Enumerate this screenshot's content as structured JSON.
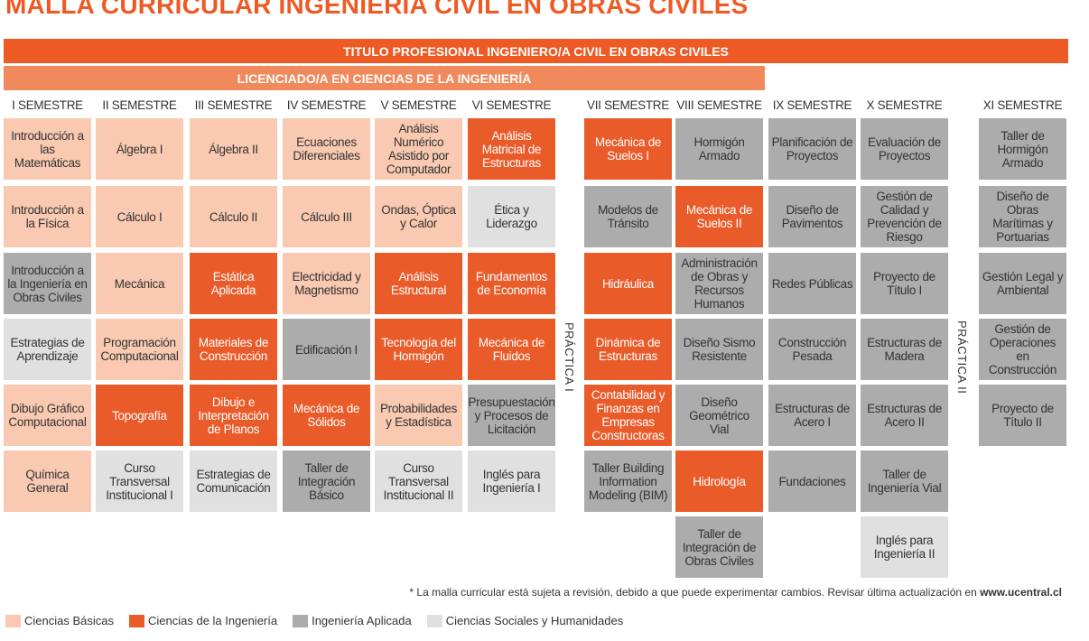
{
  "title": "MALLA CURRICULAR INGENIERÍA CIVIL EN OBRAS CIVILES",
  "titulo_bar": "TITULO PROFESIONAL INGENIERO/A CIVIL EN OBRAS CIVILES",
  "licenciado_bar": "LICENCIADO/A EN CIENCIAS DE LA INGENIERÍA",
  "semesters": [
    {
      "label": "I SEMESTRE",
      "courses": [
        {
          "name": "Introducción a las Matemáticas",
          "cat": "cb"
        },
        {
          "name": "Introducción a la Física",
          "cat": "cb"
        },
        {
          "name": "Introducción a la Ingeniería en Obras Civiles",
          "cat": "ia"
        },
        {
          "name": "Estrategias de Aprendizaje",
          "cat": "cs"
        },
        {
          "name": "Dibujo Gráfico Computacional",
          "cat": "cb"
        },
        {
          "name": "Química General",
          "cat": "cb"
        }
      ]
    },
    {
      "label": "II SEMESTRE",
      "courses": [
        {
          "name": "Álgebra I",
          "cat": "cb"
        },
        {
          "name": "Cálculo I",
          "cat": "cb"
        },
        {
          "name": "Mecánica",
          "cat": "cb"
        },
        {
          "name": "Programación Computacional",
          "cat": "cb"
        },
        {
          "name": "Topografía",
          "cat": "ci"
        },
        {
          "name": "Curso Transversal Institucional I",
          "cat": "cs"
        }
      ]
    },
    {
      "label": "III SEMESTRE",
      "courses": [
        {
          "name": "Álgebra II",
          "cat": "cb"
        },
        {
          "name": "Cálculo II",
          "cat": "cb"
        },
        {
          "name": "Estática Aplicada",
          "cat": "ci"
        },
        {
          "name": "Materiales de Construcción",
          "cat": "ci"
        },
        {
          "name": "Dibujo e Interpretación de Planos",
          "cat": "ci"
        },
        {
          "name": "Estrategias de Comunicación",
          "cat": "cs"
        }
      ]
    },
    {
      "label": "IV SEMESTRE",
      "courses": [
        {
          "name": "Ecuaciones Diferenciales",
          "cat": "cb"
        },
        {
          "name": "Cálculo III",
          "cat": "cb"
        },
        {
          "name": "Electricidad y Magnetismo",
          "cat": "cb"
        },
        {
          "name": "Edificación I",
          "cat": "ia"
        },
        {
          "name": "Mecánica de Sólidos",
          "cat": "ci"
        },
        {
          "name": "Taller de Integración Básico",
          "cat": "ia"
        }
      ]
    },
    {
      "label": "V SEMESTRE",
      "courses": [
        {
          "name": "Análisis Numérico Asistido por Computador",
          "cat": "cb"
        },
        {
          "name": "Ondas, Óptica y Calor",
          "cat": "cb"
        },
        {
          "name": "Análisis Estructural",
          "cat": "ci"
        },
        {
          "name": "Tecnología del Hormigón",
          "cat": "ci"
        },
        {
          "name": "Probabilidades y Estadística",
          "cat": "cb"
        },
        {
          "name": "Curso Transversal Institucional II",
          "cat": "cs"
        }
      ]
    },
    {
      "label": "VI SEMESTRE",
      "courses": [
        {
          "name": "Análisis Matricial de Estructuras",
          "cat": "ci"
        },
        {
          "name": "Ética y Liderazgo",
          "cat": "cs"
        },
        {
          "name": "Fundamentos de Economía",
          "cat": "ci"
        },
        {
          "name": "Mecánica de Fluidos",
          "cat": "ci"
        },
        {
          "name": "Presupuestación y Procesos de Licitación",
          "cat": "ia"
        },
        {
          "name": "Inglés para Ingeniería I",
          "cat": "cs"
        }
      ]
    },
    {
      "label": "VII SEMESTRE",
      "courses": [
        {
          "name": "Mecánica de Suelos I",
          "cat": "ci"
        },
        {
          "name": "Modelos de Tránsito",
          "cat": "ia"
        },
        {
          "name": "Hidráulica",
          "cat": "ci"
        },
        {
          "name": "Dinámica de Estructuras",
          "cat": "ci"
        },
        {
          "name": "Contabilidad y Finanzas en Empresas Constructoras",
          "cat": "ci"
        },
        {
          "name": "Taller Building Information Modeling (BIM)",
          "cat": "ia"
        }
      ]
    },
    {
      "label": "VIII SEMESTRE",
      "courses": [
        {
          "name": "Hormigón Armado",
          "cat": "ia"
        },
        {
          "name": "Mecánica de Suelos II",
          "cat": "ci"
        },
        {
          "name": "Administración de Obras y Recursos Humanos",
          "cat": "ia"
        },
        {
          "name": "Diseño Sismo Resistente",
          "cat": "ia"
        },
        {
          "name": "Diseño Geométrico Vial",
          "cat": "ia"
        },
        {
          "name": "Hidrología",
          "cat": "ci"
        },
        {
          "name": "Taller de Integración de Obras Civiles",
          "cat": "ia"
        }
      ]
    },
    {
      "label": "IX SEMESTRE",
      "courses": [
        {
          "name": "Planificación de Proyectos",
          "cat": "ia"
        },
        {
          "name": "Diseño de Pavimentos",
          "cat": "ia"
        },
        {
          "name": "Redes Públicas",
          "cat": "ia"
        },
        {
          "name": "Construcción Pesada",
          "cat": "ia"
        },
        {
          "name": "Estructuras de Acero I",
          "cat": "ia"
        },
        {
          "name": "Fundaciones",
          "cat": "ia"
        }
      ]
    },
    {
      "label": "X SEMESTRE",
      "courses": [
        {
          "name": "Evaluación de Proyectos",
          "cat": "ia"
        },
        {
          "name": "Gestión de Calidad y Prevención de Riesgo",
          "cat": "ia"
        },
        {
          "name": "Proyecto de Título I",
          "cat": "ia"
        },
        {
          "name": "Estructuras de Madera",
          "cat": "ia"
        },
        {
          "name": "Estructuras de Acero II",
          "cat": "ia"
        },
        {
          "name": "Taller de Ingeniería Vial",
          "cat": "ia"
        },
        {
          "name": "Inglés para Ingeniería II",
          "cat": "cs"
        }
      ]
    },
    {
      "label": "XI SEMESTRE",
      "courses": [
        {
          "name": "Taller de Hormigón Armado",
          "cat": "ia"
        },
        {
          "name": "Diseño de Obras Marítimas y Portuarias",
          "cat": "ia"
        },
        {
          "name": "Gestión Legal y Ambiental",
          "cat": "ia"
        },
        {
          "name": "Gestión de Operaciones en Construcción",
          "cat": "ia"
        },
        {
          "name": "Proyecto de Título II",
          "cat": "ia"
        }
      ]
    }
  ],
  "practica_1": "PRÁCTICA I",
  "practica_2": "PRÁCTICA II",
  "note_text": "* La malla curricular está sujeta a revisión, debido a que puede experimentar cambios. Revisar última actualización en ",
  "note_url": "www.ucentral.cl",
  "legend": [
    {
      "label": "Ciencias Básicas",
      "color": "#f9c9b1"
    },
    {
      "label": "Ciencias de la Ingeniería",
      "color": "#ea5b2a"
    },
    {
      "label": "Ingeniería Aplicada",
      "color": "#acacac"
    },
    {
      "label": "Ciencias Sociales y Humanidades",
      "color": "#e0e0e0"
    }
  ]
}
